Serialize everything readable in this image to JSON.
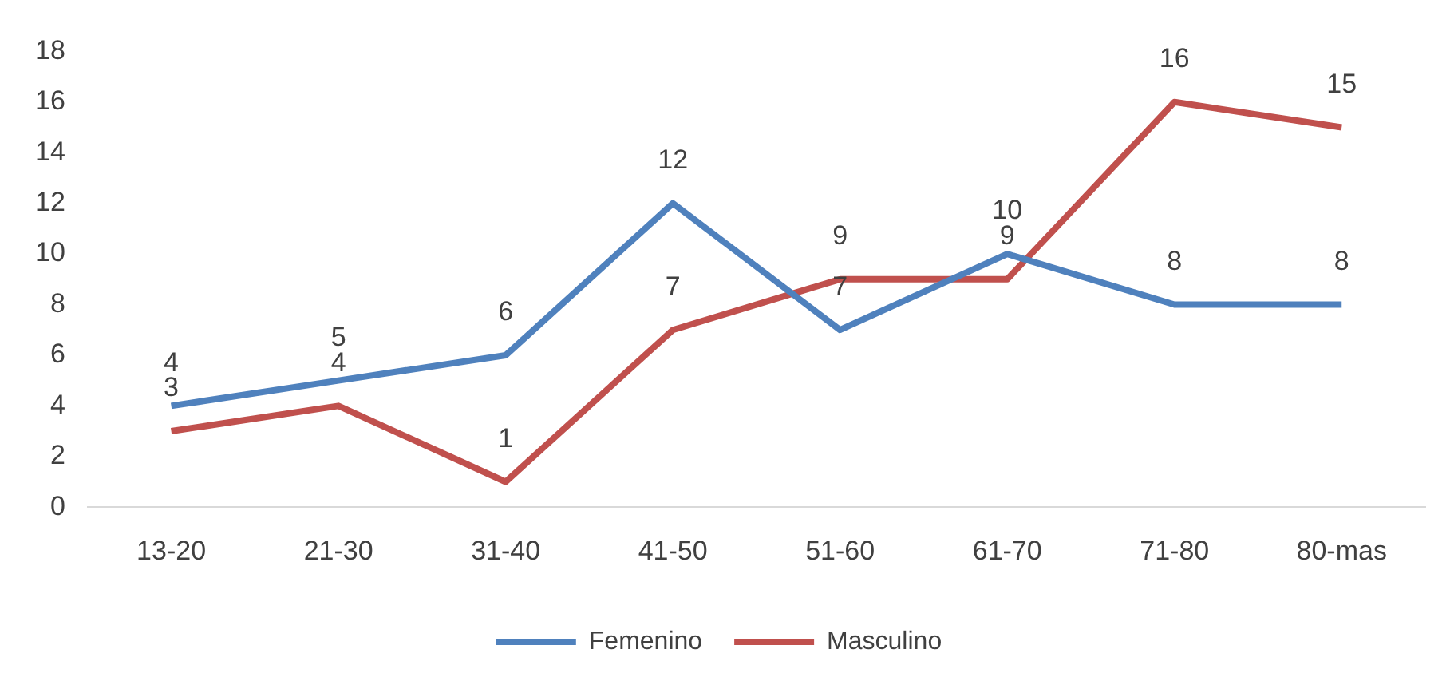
{
  "chart_data": {
    "type": "line",
    "categories": [
      "13-20",
      "21-30",
      "31-40",
      "41-50",
      "51-60",
      "61-70",
      "71-80",
      "80-mas"
    ],
    "series": [
      {
        "name": "Femenino",
        "color": "#4f81bd",
        "values": [
          4,
          5,
          6,
          12,
          7,
          10,
          8,
          8
        ]
      },
      {
        "name": "Masculino",
        "color": "#c0504d",
        "values": [
          3,
          4,
          1,
          7,
          9,
          9,
          16,
          15
        ]
      }
    ],
    "ylim": [
      0,
      18
    ],
    "yticks": [
      0,
      2,
      4,
      6,
      8,
      10,
      12,
      14,
      16,
      18
    ],
    "grid": false,
    "legend": "bottom",
    "data_labels": true,
    "marker": "none",
    "line_style": "solid"
  }
}
